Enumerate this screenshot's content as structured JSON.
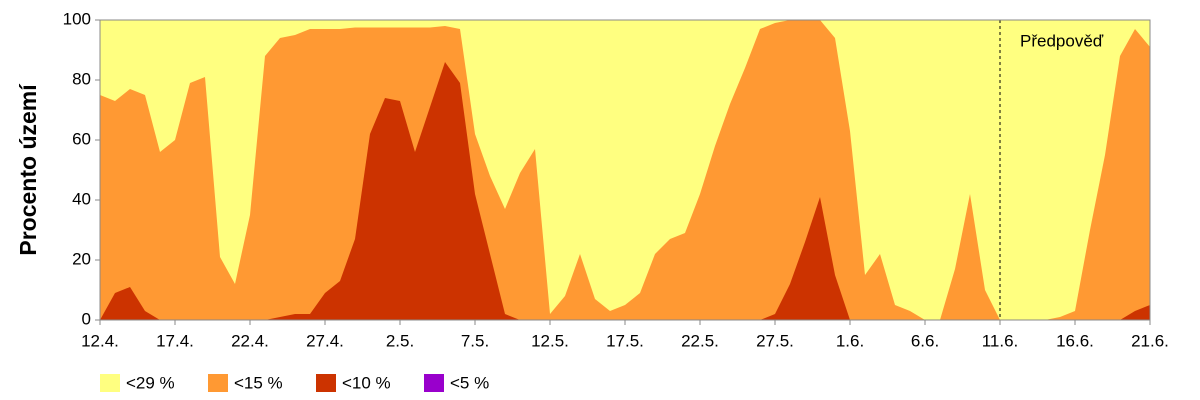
{
  "chart_data": {
    "type": "area",
    "y_label": "Procento území",
    "annotation": "Předpověď",
    "forecast_start": "11.6.",
    "categories": [
      "12.4.",
      null,
      null,
      null,
      null,
      "17.4.",
      null,
      null,
      null,
      null,
      "22.4.",
      null,
      null,
      null,
      null,
      "27.4.",
      null,
      null,
      null,
      null,
      "2.5.",
      null,
      null,
      null,
      null,
      "7.5.",
      null,
      null,
      null,
      null,
      "12.5.",
      null,
      null,
      null,
      null,
      "17.5.",
      null,
      null,
      null,
      null,
      "22.5.",
      null,
      null,
      null,
      null,
      "27.5.",
      null,
      null,
      null,
      null,
      "1.6.",
      null,
      null,
      null,
      null,
      "6.6.",
      null,
      null,
      null,
      null,
      "11.6.",
      null,
      null,
      null,
      null,
      "16.6.",
      null,
      null,
      null,
      null,
      "21.6."
    ],
    "series": [
      {
        "name": "<29 %",
        "color": "#ffff80",
        "values": [
          100,
          100,
          100,
          100,
          100,
          100,
          100,
          100,
          100,
          100,
          100,
          100,
          100,
          100,
          100,
          100,
          100,
          100,
          100,
          100,
          100,
          100,
          100,
          100,
          100,
          100,
          100,
          100,
          100,
          100,
          100,
          100,
          100,
          100,
          100,
          100,
          100,
          100,
          100,
          100,
          100,
          100,
          100,
          100,
          100,
          100,
          100,
          100,
          100,
          100,
          100,
          100,
          100,
          100,
          100,
          100,
          100,
          100,
          100,
          100,
          100,
          100,
          100,
          100,
          100,
          100,
          100,
          100,
          100,
          100,
          100
        ]
      },
      {
        "name": "<15 %",
        "color": "#ff9933",
        "values": [
          75,
          73,
          77,
          75,
          56,
          60,
          79,
          81,
          21,
          12,
          35,
          88,
          94,
          95,
          97,
          97,
          97,
          97.5,
          97.5,
          97.5,
          97.5,
          97.5,
          97.5,
          98,
          97,
          62,
          48,
          37,
          49,
          57,
          2,
          8,
          22,
          7,
          3,
          5,
          9,
          22,
          27,
          29,
          42,
          58,
          72,
          84,
          97,
          99,
          100,
          100,
          100,
          94,
          63,
          15,
          22,
          5,
          3,
          0,
          0,
          17,
          42,
          10,
          0,
          0,
          0,
          0,
          1,
          3,
          30,
          55,
          88,
          97,
          91
        ]
      },
      {
        "name": "<10 %",
        "color": "#cc3300",
        "values": [
          0,
          9,
          11,
          3,
          0,
          0,
          0,
          0,
          0,
          0,
          0,
          0,
          1,
          2,
          2,
          9,
          13,
          27,
          62,
          74,
          73,
          56,
          71,
          86,
          79,
          42,
          22,
          2,
          0,
          0,
          0,
          0,
          0,
          0,
          0,
          0,
          0,
          0,
          0,
          0,
          0,
          0,
          0,
          0,
          0,
          2,
          12,
          26,
          41,
          15,
          0,
          0,
          0,
          0,
          0,
          0,
          0,
          0,
          0,
          0,
          0,
          0,
          0,
          0,
          0,
          0,
          0,
          0,
          0,
          3,
          5
        ]
      },
      {
        "name": "<5 %",
        "color": "#9900cc",
        "values": [
          0,
          0,
          0,
          0,
          0,
          0,
          0,
          0,
          0,
          0,
          0,
          0,
          0,
          0,
          0,
          0,
          0,
          0,
          0,
          0,
          0,
          0,
          0,
          0,
          0,
          0,
          0,
          0,
          0,
          0,
          0,
          0,
          0,
          0,
          0,
          0,
          0,
          0,
          0,
          0,
          0,
          0,
          0,
          0,
          0,
          0,
          0,
          0,
          0,
          0,
          0,
          0,
          0,
          0,
          0,
          0,
          0,
          0,
          0,
          0,
          0,
          0,
          0,
          0,
          0,
          0,
          0,
          0,
          0,
          0,
          0
        ]
      }
    ],
    "ylim": [
      0,
      100
    ],
    "yticks": [
      0,
      20,
      40,
      60,
      80,
      100
    ]
  }
}
